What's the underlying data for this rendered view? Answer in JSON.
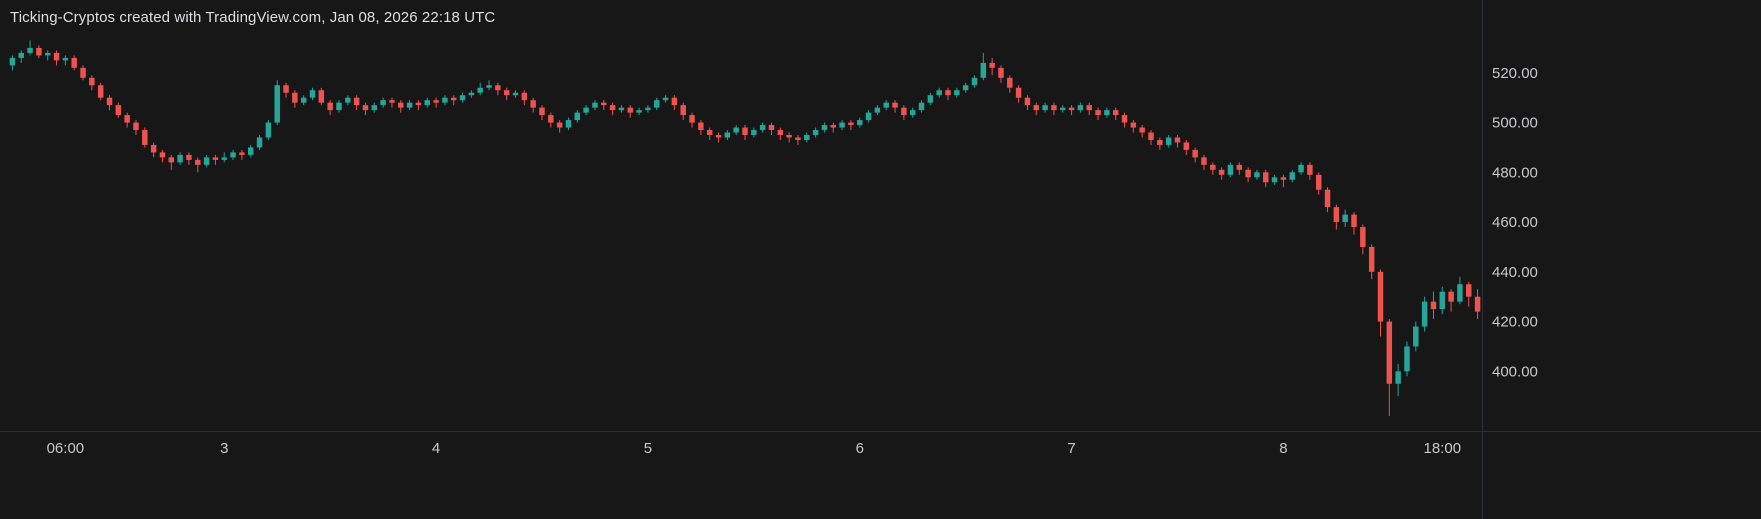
{
  "header": {
    "title": "Ticking-Cryptos created with TradingView.com, Jan 08, 2026 22:18 UTC"
  },
  "chart_data": {
    "type": "candlestick",
    "title": "Ticking-Cryptos created with TradingView.com, Jan 08, 2026 22:18 UTC",
    "ylim": [
      376,
      534
    ],
    "y_ticks": [
      520,
      500,
      480,
      460,
      440,
      420,
      400
    ],
    "y_tick_labels": [
      "520.00",
      "500.00",
      "480.00",
      "460.00",
      "440.00",
      "420.00",
      "400.00"
    ],
    "time_labels": [
      {
        "i": 6,
        "label": "06:00"
      },
      {
        "i": 24,
        "label": "3"
      },
      {
        "i": 48,
        "label": "4"
      },
      {
        "i": 72,
        "label": "5"
      },
      {
        "i": 96,
        "label": "6"
      },
      {
        "i": 120,
        "label": "7"
      },
      {
        "i": 144,
        "label": "8"
      },
      {
        "i": 162,
        "label": "18:00"
      }
    ],
    "legend_position": "none",
    "grid": false,
    "colors": {
      "up": "#26a69a",
      "down": "#ef5350",
      "background": "#171717",
      "axis_text": "#c6c8cc",
      "axis_line": "#2a2e39",
      "title_text": "#dcdee1"
    },
    "candles": [
      [
        523,
        527,
        521,
        526
      ],
      [
        526,
        529,
        524,
        528
      ],
      [
        528,
        533,
        527,
        530
      ],
      [
        530,
        531,
        526,
        527
      ],
      [
        527,
        529,
        525,
        528
      ],
      [
        528,
        529,
        523,
        525
      ],
      [
        525,
        527,
        523,
        526
      ],
      [
        526,
        527,
        521,
        522
      ],
      [
        522,
        523,
        517,
        518
      ],
      [
        518,
        519,
        513,
        515
      ],
      [
        515,
        516,
        509,
        510
      ],
      [
        510,
        511,
        505,
        507
      ],
      [
        507,
        508,
        502,
        503
      ],
      [
        503,
        504,
        498,
        500
      ],
      [
        500,
        501,
        495,
        497
      ],
      [
        497,
        498,
        490,
        491
      ],
      [
        491,
        492,
        486,
        488
      ],
      [
        488,
        489,
        484,
        486
      ],
      [
        486,
        487,
        481,
        484
      ],
      [
        484,
        488,
        483,
        487
      ],
      [
        487,
        488,
        483,
        485
      ],
      [
        485,
        486,
        480,
        483
      ],
      [
        483,
        487,
        482,
        486
      ],
      [
        486,
        487,
        483,
        485
      ],
      [
        485,
        488,
        484,
        486
      ],
      [
        486,
        489,
        485,
        488
      ],
      [
        488,
        489,
        485,
        487
      ],
      [
        487,
        491,
        486,
        490
      ],
      [
        490,
        495,
        489,
        494
      ],
      [
        494,
        501,
        493,
        500
      ],
      [
        500,
        517,
        499,
        515
      ],
      [
        515,
        516,
        510,
        512
      ],
      [
        512,
        513,
        506,
        508
      ],
      [
        508,
        511,
        507,
        510
      ],
      [
        510,
        514,
        509,
        513
      ],
      [
        513,
        514,
        507,
        508
      ],
      [
        508,
        509,
        503,
        505
      ],
      [
        505,
        509,
        504,
        508
      ],
      [
        508,
        511,
        507,
        510
      ],
      [
        510,
        511,
        505,
        507
      ],
      [
        507,
        508,
        503,
        505
      ],
      [
        505,
        508,
        504,
        507
      ],
      [
        507,
        510,
        506,
        509
      ],
      [
        509,
        510,
        506,
        508
      ],
      [
        508,
        509,
        504,
        506
      ],
      [
        506,
        509,
        505,
        508
      ],
      [
        508,
        509,
        505,
        507
      ],
      [
        507,
        510,
        506,
        509
      ],
      [
        509,
        510,
        506,
        508
      ],
      [
        508,
        511,
        507,
        510
      ],
      [
        510,
        511,
        507,
        509
      ],
      [
        509,
        512,
        508,
        511
      ],
      [
        511,
        513,
        510,
        512
      ],
      [
        512,
        516,
        511,
        514
      ],
      [
        514,
        517,
        513,
        515
      ],
      [
        515,
        516,
        511,
        513
      ],
      [
        513,
        514,
        509,
        511
      ],
      [
        511,
        513,
        510,
        512
      ],
      [
        512,
        513,
        507,
        509
      ],
      [
        509,
        510,
        504,
        506
      ],
      [
        506,
        507,
        501,
        503
      ],
      [
        503,
        504,
        498,
        500
      ],
      [
        500,
        501,
        496,
        498
      ],
      [
        498,
        502,
        497,
        501
      ],
      [
        501,
        505,
        500,
        504
      ],
      [
        504,
        507,
        503,
        506
      ],
      [
        506,
        509,
        505,
        508
      ],
      [
        508,
        509,
        505,
        507
      ],
      [
        507,
        508,
        503,
        505
      ],
      [
        505,
        507,
        504,
        506
      ],
      [
        506,
        507,
        502,
        504
      ],
      [
        504,
        506,
        503,
        505
      ],
      [
        505,
        507,
        504,
        506
      ],
      [
        506,
        510,
        505,
        509
      ],
      [
        509,
        511,
        508,
        510
      ],
      [
        510,
        511,
        505,
        507
      ],
      [
        507,
        508,
        501,
        503
      ],
      [
        503,
        504,
        498,
        500
      ],
      [
        500,
        501,
        495,
        497
      ],
      [
        497,
        498,
        493,
        495
      ],
      [
        495,
        496,
        492,
        494
      ],
      [
        494,
        497,
        493,
        496
      ],
      [
        496,
        499,
        495,
        498
      ],
      [
        498,
        499,
        493,
        495
      ],
      [
        495,
        498,
        494,
        497
      ],
      [
        497,
        500,
        496,
        499
      ],
      [
        499,
        500,
        495,
        497
      ],
      [
        497,
        498,
        493,
        495
      ],
      [
        495,
        496,
        492,
        494
      ],
      [
        494,
        495,
        491,
        493
      ],
      [
        493,
        496,
        492,
        495
      ],
      [
        495,
        498,
        494,
        497
      ],
      [
        497,
        500,
        496,
        499
      ],
      [
        499,
        500,
        496,
        498
      ],
      [
        498,
        501,
        497,
        500
      ],
      [
        500,
        501,
        497,
        499
      ],
      [
        499,
        502,
        498,
        501
      ],
      [
        501,
        505,
        500,
        504
      ],
      [
        504,
        507,
        503,
        506
      ],
      [
        506,
        509,
        505,
        508
      ],
      [
        508,
        509,
        504,
        506
      ],
      [
        506,
        507,
        501,
        503
      ],
      [
        503,
        506,
        502,
        505
      ],
      [
        505,
        509,
        504,
        508
      ],
      [
        508,
        512,
        507,
        511
      ],
      [
        511,
        514,
        510,
        513
      ],
      [
        513,
        514,
        509,
        511
      ],
      [
        511,
        514,
        510,
        513
      ],
      [
        513,
        516,
        512,
        515
      ],
      [
        515,
        519,
        514,
        518
      ],
      [
        518,
        528,
        517,
        524
      ],
      [
        524,
        526,
        519,
        522
      ],
      [
        522,
        523,
        516,
        518
      ],
      [
        518,
        519,
        512,
        514
      ],
      [
        514,
        515,
        508,
        510
      ],
      [
        510,
        511,
        505,
        507
      ],
      [
        507,
        508,
        503,
        505
      ],
      [
        505,
        508,
        504,
        507
      ],
      [
        507,
        508,
        503,
        505
      ],
      [
        505,
        507,
        504,
        506
      ],
      [
        506,
        507,
        503,
        505
      ],
      [
        505,
        508,
        504,
        507
      ],
      [
        507,
        508,
        503,
        505
      ],
      [
        505,
        506,
        501,
        503
      ],
      [
        503,
        506,
        502,
        505
      ],
      [
        505,
        506,
        501,
        503
      ],
      [
        503,
        504,
        498,
        500
      ],
      [
        500,
        501,
        496,
        498
      ],
      [
        498,
        499,
        494,
        496
      ],
      [
        496,
        497,
        491,
        493
      ],
      [
        493,
        494,
        489,
        491
      ],
      [
        491,
        495,
        490,
        494
      ],
      [
        494,
        495,
        490,
        492
      ],
      [
        492,
        493,
        487,
        489
      ],
      [
        489,
        490,
        484,
        486
      ],
      [
        486,
        487,
        481,
        483
      ],
      [
        483,
        484,
        479,
        481
      ],
      [
        481,
        482,
        477,
        479
      ],
      [
        479,
        484,
        478,
        483
      ],
      [
        483,
        484,
        479,
        481
      ],
      [
        481,
        482,
        476,
        478
      ],
      [
        478,
        481,
        477,
        480
      ],
      [
        480,
        481,
        474,
        476
      ],
      [
        476,
        479,
        475,
        478
      ],
      [
        478,
        479,
        474,
        477
      ],
      [
        477,
        481,
        476,
        480
      ],
      [
        480,
        484,
        479,
        483
      ],
      [
        483,
        484,
        477,
        479
      ],
      [
        479,
        480,
        471,
        473
      ],
      [
        473,
        474,
        464,
        466
      ],
      [
        466,
        467,
        457,
        460
      ],
      [
        460,
        465,
        458,
        463
      ],
      [
        463,
        464,
        455,
        458
      ],
      [
        458,
        459,
        447,
        450
      ],
      [
        450,
        451,
        437,
        440
      ],
      [
        440,
        441,
        414,
        420
      ],
      [
        420,
        421,
        382,
        395
      ],
      [
        395,
        403,
        390,
        400
      ],
      [
        400,
        412,
        398,
        410
      ],
      [
        410,
        420,
        408,
        418
      ],
      [
        418,
        430,
        416,
        428
      ],
      [
        428,
        432,
        421,
        425
      ],
      [
        425,
        434,
        423,
        432
      ],
      [
        432,
        433,
        424,
        428
      ],
      [
        428,
        438,
        427,
        435
      ],
      [
        435,
        436,
        426,
        430
      ],
      [
        430,
        433,
        421,
        424
      ]
    ]
  }
}
